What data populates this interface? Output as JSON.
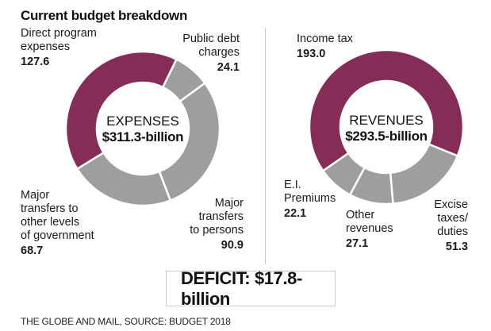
{
  "title": "Current budget breakdown",
  "colors": {
    "highlight": "#862d57",
    "other": "#9e9e9e",
    "separator": "#ffffff"
  },
  "chart_data": [
    {
      "type": "pie",
      "variant": "donut",
      "name": "EXPENSES",
      "total_label": "$311.3-billion",
      "total": 311.3,
      "units": "$ billions",
      "start_angle_deg": -121.6,
      "slices": [
        {
          "label": "Direct program expenses",
          "label_lines": [
            "Direct program",
            "expenses"
          ],
          "value": 127.6,
          "highlight": true
        },
        {
          "label": "Public debt charges",
          "label_lines": [
            "Public debt",
            "charges"
          ],
          "value": 24.1,
          "highlight": false
        },
        {
          "label": "Major transfers to persons",
          "label_lines": [
            "Major",
            "transfers",
            "to persons"
          ],
          "value": 90.9,
          "highlight": false
        },
        {
          "label": "Major transfers to other levels of government",
          "label_lines": [
            "Major",
            "transfers to",
            "other levels",
            "of government"
          ],
          "value": 68.7,
          "highlight": false
        }
      ]
    },
    {
      "type": "pie",
      "variant": "donut",
      "name": "REVENUES",
      "total_label": "$293.5-billion",
      "total": 293.5,
      "units": "$ billions",
      "start_angle_deg": -124.7,
      "slices": [
        {
          "label": "Income tax",
          "label_lines": [
            "Income tax"
          ],
          "value": 193.0,
          "highlight": true
        },
        {
          "label": "Excise taxes/ duties",
          "label_lines": [
            "Excise",
            "taxes/",
            "duties"
          ],
          "value": 51.3,
          "highlight": false
        },
        {
          "label": "Other revenues",
          "label_lines": [
            "Other",
            "revenues"
          ],
          "value": 27.1,
          "highlight": false
        },
        {
          "label": "E.I. Premiums",
          "label_lines": [
            "E.I.",
            "Premiums"
          ],
          "value": 22.1,
          "highlight": false
        }
      ]
    }
  ],
  "deficit": "DEFICIT: $17.8-billion",
  "source": "THE GLOBE AND MAIL, SOURCE: BUDGET 2018"
}
